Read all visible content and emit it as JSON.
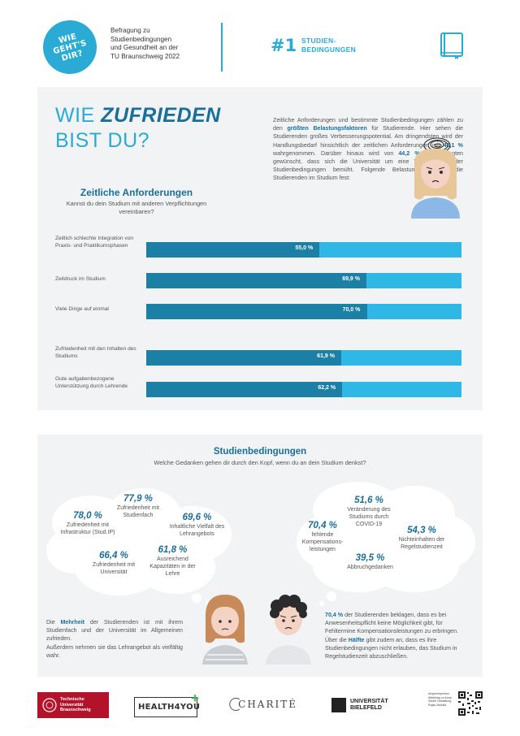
{
  "header": {
    "logo_text": "WIE\nGEHT'S\nDIR?",
    "survey_title": "Befragung zu\nStudienbedingungen\nund Gesundheit an der\nTU Braunschweig 2022",
    "section_number": "#1",
    "section_label": "STUDIEN-\nBEDINGUNGEN",
    "section_icon": "book-icon"
  },
  "panel1": {
    "title_line1_a": "WIE ",
    "title_line1_b": "ZUFRIEDEN",
    "title_line2": "BIST DU?",
    "intro_1": "Zeitliche Anforderungen und bestimmte Studienbedingungen zählen zu den ",
    "intro_2": "größten Belastungsfaktoren",
    "intro_3": " für Studierende. Hier sehen die Studierenden großes Verbesserungspotential. Am dringendsten wird der Handlungsbedarf hinsichtlich der zeitlichen Anforderungen mit ",
    "intro_4": "48,1 %",
    "intro_5": " wahrgenommen. Darüber hinaus wird von ",
    "intro_6": "44,2 %",
    "intro_7": " der Befragten gewünscht, dass sich die Universität um eine Verbesserung der Studienbedingungen bemüht. Folgende Belastungen stellen die Studierenden im Studium fest:",
    "subtitle": "Zeitliche Anforderungen",
    "question": "Kannst du dein Studium mit anderen Verpflichtungen vereinbaren?"
  },
  "chart_data": {
    "type": "bar",
    "orientation": "horizontal",
    "categories": [
      "Zeitlich schlechte Integration von Praxis- und Praktikumsphasen",
      "Zeitdruck im Studium",
      "Viele Dinge auf einmal",
      "Zufriedenheit mit den Inhalten des Studiums",
      "Gute aufgabenbezogene Unterstützung durch Lehrende"
    ],
    "values": [
      55.0,
      69.9,
      70.0,
      61.9,
      62.2
    ],
    "value_labels": [
      "55,0 %",
      "69,9 %",
      "70,0 %",
      "61,9 %",
      "62,2 %"
    ],
    "xlim": [
      0,
      100
    ],
    "colors": {
      "fill": "#1c7fa5",
      "remainder": "#2fb7e6"
    }
  },
  "panel2": {
    "title": "Studienbedingungen",
    "question": "Welche Gedanken gehen dir durch den Kopf, wenn du an dein Studium denkst?",
    "left_stats": [
      {
        "pct": "78,0 %",
        "label": "Zufriedenheit mit Infrastruktur (Stud.IP)"
      },
      {
        "pct": "77,9 %",
        "label": "Zufriedenheit mit Studienfach"
      },
      {
        "pct": "69,6 %",
        "label": "Inhaltliche Vielfalt des Lehrangebots"
      },
      {
        "pct": "66,4 %",
        "label": "Zufriedenheit mit Universität"
      },
      {
        "pct": "61,8 %",
        "label": "Ausreichend Kapazitäten in der Lehre"
      }
    ],
    "right_stats": [
      {
        "pct": "51,6 %",
        "label": "Veränderung des Studiums durch COVID-19"
      },
      {
        "pct": "70,4 %",
        "label": "fehlende Kompensations-leistungen"
      },
      {
        "pct": "54,3 %",
        "label": "Nichteinhalten der Regelstudienzeit"
      },
      {
        "pct": "39,5 %",
        "label": "Abbruchgedanken"
      }
    ],
    "bottom_left_1": "Die ",
    "bottom_left_2": "Mehrheit",
    "bottom_left_3": " der Studierenden ist mit ihrem Studienfach und der Universität im Allgemeinen zufrieden.",
    "bottom_left_4": "Außerdem nehmen sie das Lehrangebot als vielfältig wahr.",
    "bottom_right_1": "70,4 %",
    "bottom_right_2": " der Studierenden beklagen, dass es bei Anwesenheitspflicht keine Möglichkeit gibt, für Fehltermine Kompensationsleistungen zu erbringen. Über die ",
    "bottom_right_3": "Hälfte",
    "bottom_right_4": " gibt zudem an, dass es ihre Studienbedingungen nicht erlauben, das Studium in Regelstudienzeit abzuschließen."
  },
  "footer": {
    "tu_logo": "Technische Universität Braunschweig",
    "health_logo": "HEALTH4YOU",
    "charite_logo": "CHARITÉ",
    "bielefeld_logo": "UNIVERSITÄT BIELEFELD",
    "contact": "Ansprechperson Abteilung xx Anna Seidel Gestaltung Rojan Abdulla"
  }
}
